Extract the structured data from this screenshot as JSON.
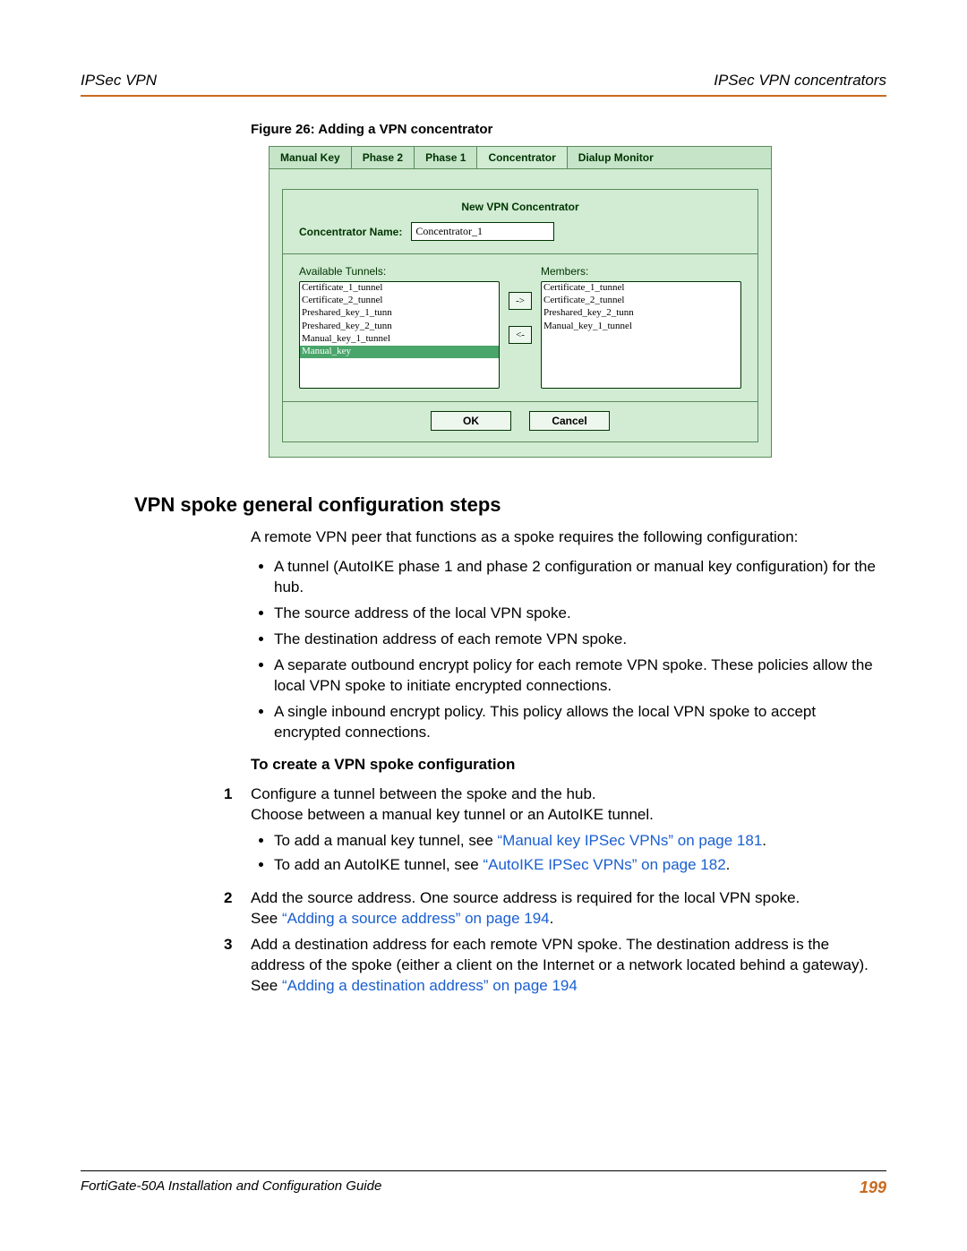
{
  "header": {
    "left": "IPSec VPN",
    "right": "IPSec VPN concentrators"
  },
  "figure_caption": "Figure 26: Adding a VPN concentrator",
  "tabs": [
    {
      "label": "Manual Key"
    },
    {
      "label": "Phase 2"
    },
    {
      "label": "Phase 1"
    },
    {
      "label": "Concentrator"
    },
    {
      "label": "Dialup Monitor"
    }
  ],
  "active_tab_index": 3,
  "dialog": {
    "title": "New VPN Concentrator",
    "name_label": "Concentrator Name:",
    "name_value": "Concentrator_1",
    "available_label": "Available Tunnels:",
    "members_label": "Members:",
    "available": [
      "Certificate_1_tunnel",
      "Certificate_2_tunnel",
      "Preshared_key_1_tunn",
      "Preshared_key_2_tunn",
      "Manual_key_1_tunnel",
      "Manual_key"
    ],
    "available_selected_index": 5,
    "members": [
      "Certificate_1_tunnel",
      "Certificate_2_tunnel",
      "Preshared_key_2_tunn",
      "Manual_key_1_tunnel"
    ],
    "arrow_right": "->",
    "arrow_left": "<-",
    "ok": "OK",
    "cancel": "Cancel"
  },
  "section_heading": "VPN spoke general configuration steps",
  "intro": "A remote VPN peer that functions as a spoke requires the following configuration:",
  "bullets": [
    "A tunnel (AutoIKE phase 1 and phase 2 configuration or manual key configuration) for the hub.",
    "The source address of the local VPN spoke.",
    "The destination address of each remote VPN spoke.",
    "A separate outbound encrypt policy for each remote VPN spoke. These policies allow the local VPN spoke to initiate encrypted connections.",
    "A single inbound encrypt policy. This policy allows the local VPN spoke to accept encrypted connections."
  ],
  "subhead": "To create a VPN spoke configuration",
  "steps": {
    "s1a": "Configure a tunnel between the spoke and the hub.",
    "s1b": "Choose between a manual key tunnel or an AutoIKE tunnel.",
    "s1_li1_pre": "To add a manual key tunnel, see ",
    "s1_li1_link": "“Manual key IPSec VPNs” on page 181",
    "s1_li1_post": ".",
    "s1_li2_pre": "To add an AutoIKE tunnel, see ",
    "s1_li2_link": "“AutoIKE IPSec VPNs” on page 182",
    "s1_li2_post": ".",
    "s2a": "Add the source address. One source address is required for the local VPN spoke.",
    "s2b_pre": "See ",
    "s2b_link": "“Adding a source address” on page 194",
    "s2b_post": ".",
    "s3a": "Add a destination address for each remote VPN spoke. The destination address is the address of the spoke (either a client on the Internet or a network located behind a gateway).",
    "s3b_pre": "See ",
    "s3b_link": "“Adding a destination address” on page 194"
  },
  "nums": {
    "n1": "1",
    "n2": "2",
    "n3": "3"
  },
  "footer": {
    "left": "FortiGate-50A Installation and Configuration Guide",
    "page": "199"
  },
  "colors": {
    "accent": "#c96a1f",
    "panel": "#d1ecd3",
    "panel_border": "#5a8a5a",
    "link": "#1a5fd0"
  }
}
